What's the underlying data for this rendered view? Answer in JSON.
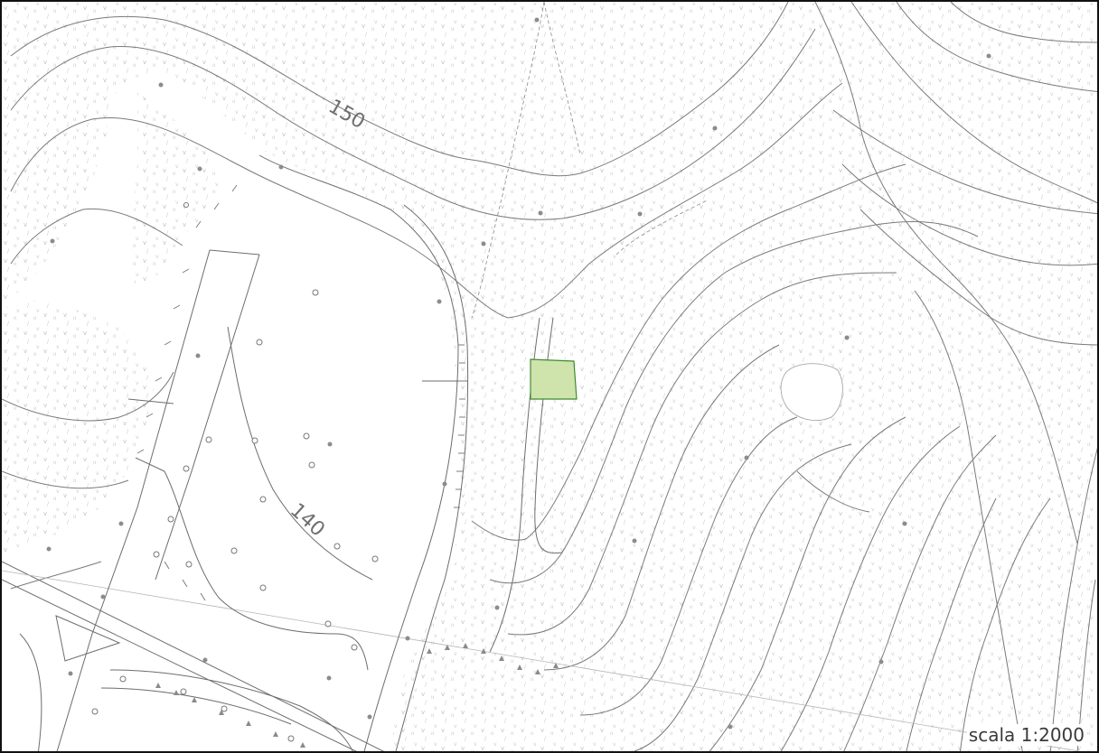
{
  "map": {
    "contour_labels": [
      "150",
      "140"
    ],
    "scale_label": "scala 1:2000",
    "colors": {
      "background": "#ffffff",
      "contour": "#7a7a7a",
      "vegetation_hatch": "#bdbdbd",
      "parcel_fill": "#cfe3ad",
      "parcel_stroke": "#3f8a2f",
      "frame": "#111111"
    }
  }
}
